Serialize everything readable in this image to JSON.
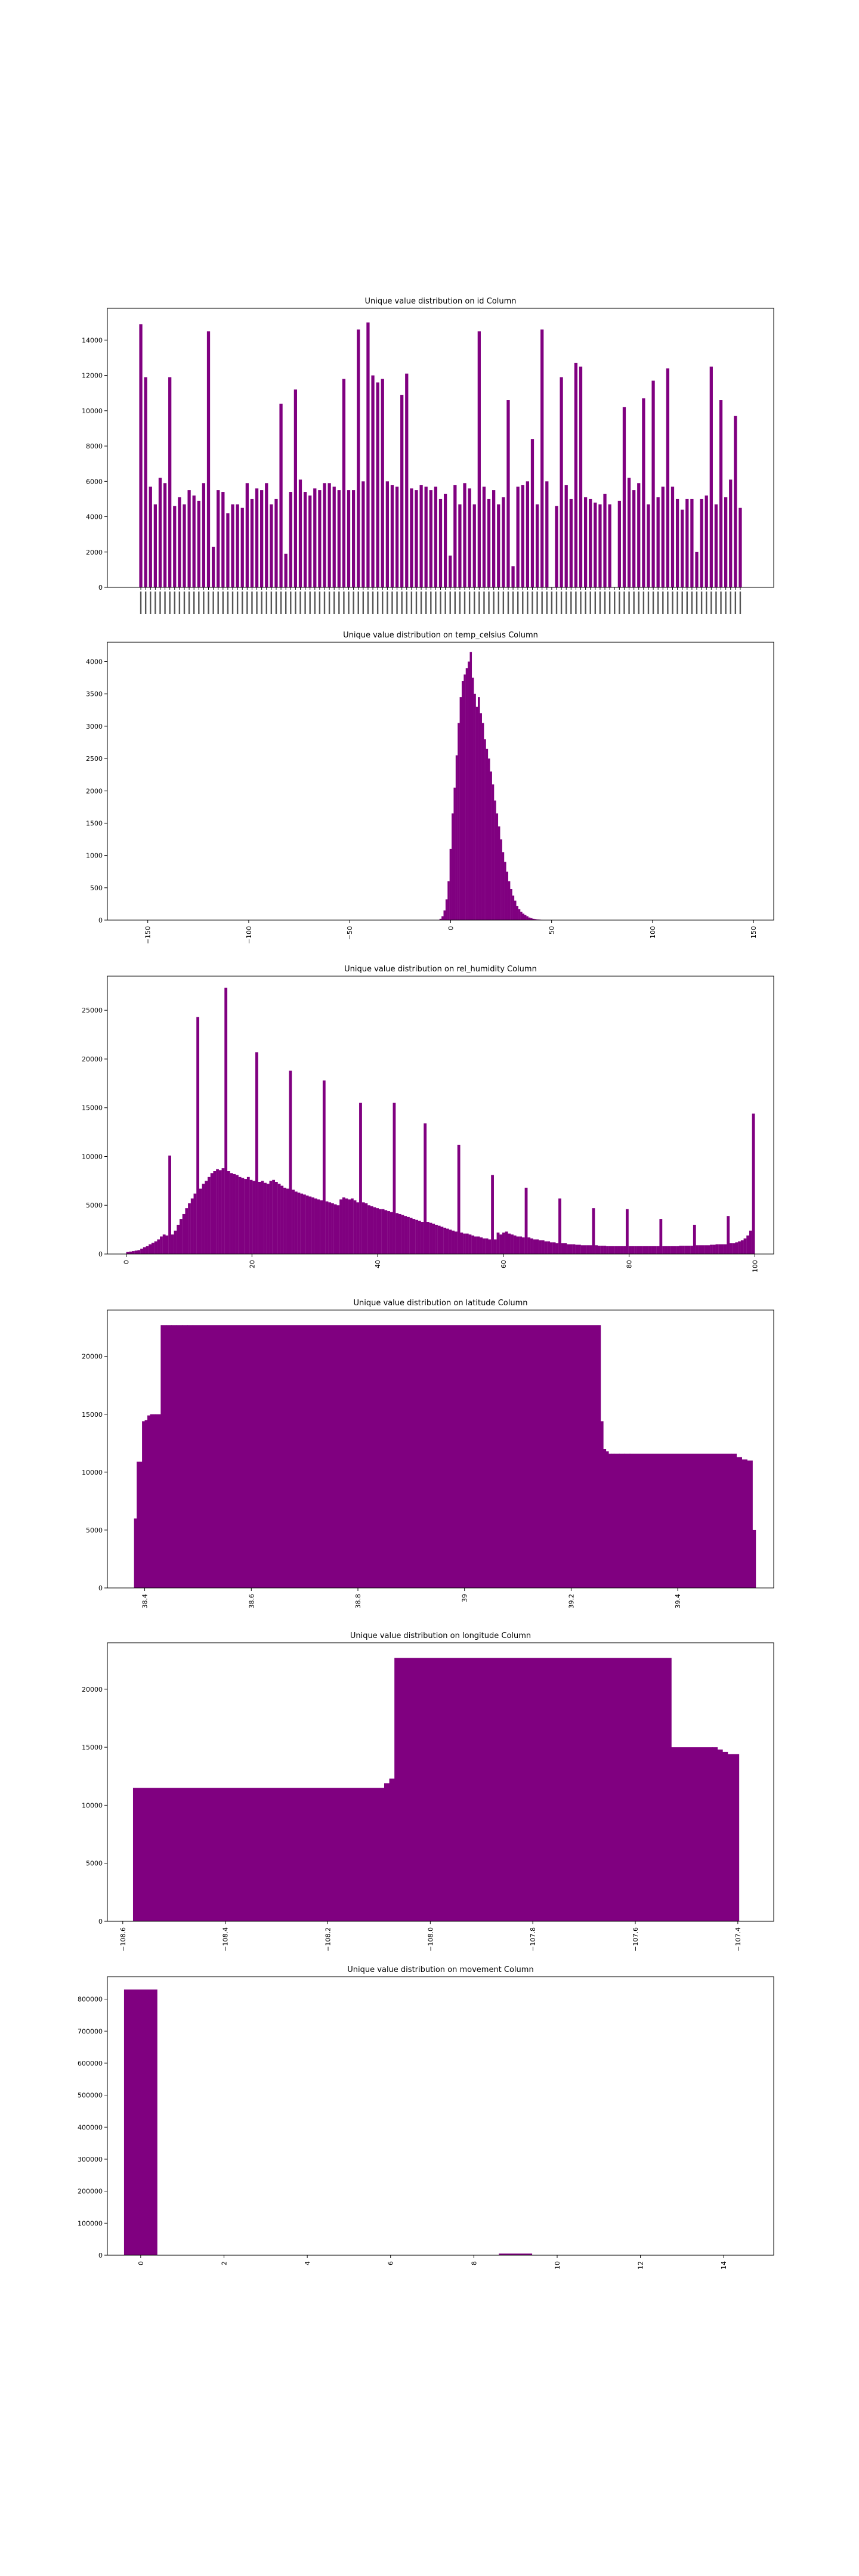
{
  "bar_color": "#800080",
  "axes_color": "#000000",
  "background": "#ffffff",
  "chart_data": [
    {
      "type": "bar",
      "title": "Unique value distribution on id Column",
      "xlabel": "",
      "ylabel": "",
      "ylim": [
        0,
        15800
      ],
      "yticks": [
        0,
        2000,
        4000,
        6000,
        8000,
        10000,
        12000,
        14000
      ],
      "x_tick_labels_rotated": true,
      "values": [
        14900,
        11900,
        5700,
        4700,
        6200,
        5900,
        11900,
        4600,
        5100,
        4700,
        5500,
        5200,
        4900,
        5900,
        14500,
        2300,
        5500,
        5400,
        4200,
        4700,
        4700,
        4500,
        5900,
        5000,
        5600,
        5500,
        5900,
        4700,
        5000,
        10400,
        1900,
        5400,
        11200,
        6100,
        5400,
        5200,
        5600,
        5500,
        5900,
        5900,
        5700,
        5500,
        11800,
        5500,
        5500,
        14600,
        6000,
        15000,
        12000,
        11600,
        11800,
        6000,
        5800,
        5700,
        10900,
        12100,
        5600,
        5500,
        5800,
        5700,
        5500,
        5700,
        5000,
        5300,
        1800,
        5800,
        4700,
        5900,
        5600,
        4700,
        14500,
        5700,
        5000,
        5500,
        4700,
        5100,
        10600,
        1200,
        5700,
        5800,
        6000,
        8400,
        4700,
        14600,
        6000,
        null,
        4600,
        11900,
        5800,
        5000,
        12700,
        12500,
        5100,
        5000,
        4800,
        4700,
        5300,
        4700,
        null,
        4900,
        10200,
        6200,
        5500,
        5900,
        10700,
        4700,
        11700,
        5100,
        5700,
        12400,
        5700,
        5000,
        4400,
        5000,
        5000,
        2000,
        5000,
        5200,
        12500,
        4700,
        10600,
        5100,
        6100,
        9700,
        4500
      ],
      "x_tick_count": 125
    },
    {
      "type": "bar",
      "title": "Unique value distribution on temp_celsius Column",
      "xlabel": "",
      "ylabel": "",
      "xlim": [
        -170,
        160
      ],
      "ylim": [
        0,
        4300
      ],
      "xticks": [
        -150,
        -100,
        -50,
        0,
        50,
        100,
        150
      ],
      "yticks": [
        0,
        500,
        1000,
        1500,
        2000,
        2500,
        3000,
        3500,
        4000
      ],
      "x_tick_labels_rotated": true,
      "peak_x": 10,
      "peak_value": 4150,
      "x": [
        -5,
        -4,
        -3,
        -2,
        -1,
        0,
        1,
        2,
        3,
        4,
        5,
        6,
        7,
        8,
        9,
        10,
        11,
        12,
        13,
        14,
        15,
        16,
        17,
        18,
        19,
        20,
        21,
        22,
        23,
        24,
        25,
        26,
        27,
        28,
        29,
        30,
        31,
        32,
        33,
        34,
        35,
        36,
        37,
        38,
        39,
        40,
        41,
        42,
        43,
        44,
        45,
        46,
        47,
        48,
        49,
        50
      ],
      "values": [
        20,
        60,
        150,
        320,
        600,
        1100,
        1650,
        2050,
        2550,
        3050,
        3450,
        3700,
        3800,
        3900,
        4000,
        4150,
        3750,
        3500,
        3300,
        3450,
        3200,
        3050,
        2800,
        2650,
        2500,
        2300,
        2100,
        1850,
        1650,
        1450,
        1250,
        1050,
        900,
        750,
        600,
        480,
        380,
        300,
        220,
        170,
        130,
        100,
        80,
        60,
        40,
        30,
        20,
        15,
        10,
        8,
        5,
        4,
        3,
        2,
        1,
        1
      ]
    },
    {
      "type": "bar",
      "title": "Unique value distribution on rel_humidity Column",
      "xlabel": "",
      "ylabel": "",
      "xlim": [
        -3,
        103
      ],
      "ylim": [
        0,
        28500
      ],
      "xticks": [
        0,
        20,
        40,
        60,
        80,
        100
      ],
      "yticks": [
        0,
        5000,
        10000,
        15000,
        20000,
        25000
      ],
      "x_tick_labels_rotated": true,
      "values": [
        200,
        250,
        300,
        350,
        400,
        550,
        700,
        800,
        1000,
        1150,
        1300,
        1500,
        1800,
        2000,
        1900,
        10100,
        2000,
        2400,
        3000,
        3600,
        4100,
        4700,
        5200,
        5700,
        6200,
        24300,
        6700,
        7200,
        7500,
        7900,
        8300,
        8500,
        8700,
        8600,
        8800,
        27300,
        8500,
        8300,
        8200,
        8100,
        7900,
        7800,
        7700,
        7900,
        7600,
        7500,
        20700,
        7400,
        7500,
        7300,
        7200,
        7500,
        7600,
        7400,
        7200,
        7000,
        6800,
        6700,
        18800,
        6600,
        6400,
        6300,
        6200,
        6100,
        6000,
        5900,
        5800,
        5700,
        5600,
        5500,
        17800,
        5400,
        5300,
        5200,
        5100,
        5000,
        5600,
        5800,
        5700,
        5600,
        5700,
        5500,
        5300,
        15500,
        5300,
        5200,
        5000,
        4900,
        4800,
        4700,
        4600,
        4600,
        4500,
        4400,
        4300,
        15500,
        4200,
        4100,
        4000,
        3900,
        3800,
        3700,
        3600,
        3500,
        3400,
        3300,
        13400,
        3300,
        3200,
        3100,
        3000,
        2900,
        2800,
        2700,
        2600,
        2500,
        2400,
        2300,
        11200,
        2200,
        2100,
        2100,
        2000,
        1900,
        1800,
        1800,
        1700,
        1600,
        1600,
        1500,
        8100,
        1500,
        2200,
        2000,
        2200,
        2300,
        2100,
        2000,
        1900,
        1800,
        1800,
        1700,
        6800,
        1700,
        1600,
        1500,
        1500,
        1400,
        1400,
        1300,
        1300,
        1200,
        1200,
        1100,
        5700,
        1100,
        1100,
        1000,
        1000,
        1000,
        950,
        950,
        900,
        900,
        900,
        900,
        4700,
        900,
        850,
        850,
        850,
        800,
        800,
        800,
        800,
        800,
        800,
        800,
        4600,
        800,
        800,
        800,
        800,
        800,
        800,
        800,
        800,
        800,
        800,
        800,
        3600,
        800,
        800,
        800,
        800,
        800,
        800,
        850,
        850,
        850,
        850,
        850,
        3000,
        900,
        900,
        900,
        900,
        900,
        950,
        950,
        1000,
        1000,
        1000,
        1000,
        3900,
        1100,
        1100,
        1200,
        1300,
        1400,
        1600,
        1900,
        2400,
        14400
      ]
    },
    {
      "type": "bar",
      "title": "Unique value distribution on latitude Column",
      "xlabel": "",
      "ylabel": "",
      "xlim": [
        38.33,
        39.58
      ],
      "ylim": [
        0,
        24000
      ],
      "xticks": [
        38.4,
        38.6,
        38.8,
        39.0,
        39.2,
        39.4
      ],
      "yticks": [
        0,
        5000,
        10000,
        15000,
        20000
      ],
      "x_tick_labels_rotated": true,
      "x": [
        38.38,
        38.385,
        38.39,
        38.395,
        38.4,
        38.405,
        38.41,
        38.415,
        38.42,
        38.43,
        38.44,
        38.45,
        38.46,
        38.47,
        38.48,
        38.49,
        39.25,
        39.255,
        39.26,
        39.265,
        39.27,
        39.275,
        39.28,
        39.29,
        39.3,
        39.31,
        39.5,
        39.51,
        39.52,
        39.53,
        39.54
      ],
      "values": [
        6000,
        10900,
        10900,
        14400,
        14500,
        14900,
        15000,
        15000,
        15000,
        22700,
        22700,
        22700,
        22700,
        22700,
        22700,
        22700,
        22700,
        14400,
        12000,
        11800,
        11600,
        11600,
        11600,
        11600,
        11600,
        11600,
        11600,
        11300,
        11100,
        11000,
        5000
      ],
      "notes_hidden": ""
    },
    {
      "type": "bar",
      "title": "Unique value distribution on longitude Column",
      "xlabel": "",
      "ylabel": "",
      "xlim": [
        -108.63,
        -107.33
      ],
      "ylim": [
        0,
        24000
      ],
      "xticks": [
        -108.6,
        -108.4,
        -108.2,
        -108.0,
        -107.8,
        -107.6,
        -107.4
      ],
      "tick_labels": [
        "−108.6",
        "−108.4",
        "−108.2",
        "−108.0",
        "−107.8",
        "−107.6",
        "−107.4"
      ],
      "yticks": [
        0,
        5000,
        10000,
        15000,
        20000
      ],
      "x_tick_labels_rotated": true,
      "x": [
        -108.58,
        -108.1,
        -108.09,
        -108.08,
        -108.07,
        -107.54,
        -107.53,
        -107.45,
        -107.44,
        -107.43,
        -107.42,
        -107.41
      ],
      "values": [
        11500,
        11500,
        11900,
        12300,
        22700,
        22700,
        15000,
        15000,
        14800,
        14600,
        14400,
        14400
      ]
    },
    {
      "type": "bar",
      "title": "Unique value distribution on movement Column",
      "xlabel": "",
      "ylabel": "",
      "xlim": [
        -0.8,
        15.2
      ],
      "ylim": [
        0,
        870000
      ],
      "xticks": [
        0,
        2,
        4,
        6,
        8,
        10,
        12,
        14
      ],
      "yticks": [
        0,
        100000,
        200000,
        300000,
        400000,
        500000,
        600000,
        700000,
        800000
      ],
      "x_tick_labels_rotated": true,
      "x": [
        0,
        9
      ],
      "values": [
        830000,
        5000
      ]
    }
  ]
}
